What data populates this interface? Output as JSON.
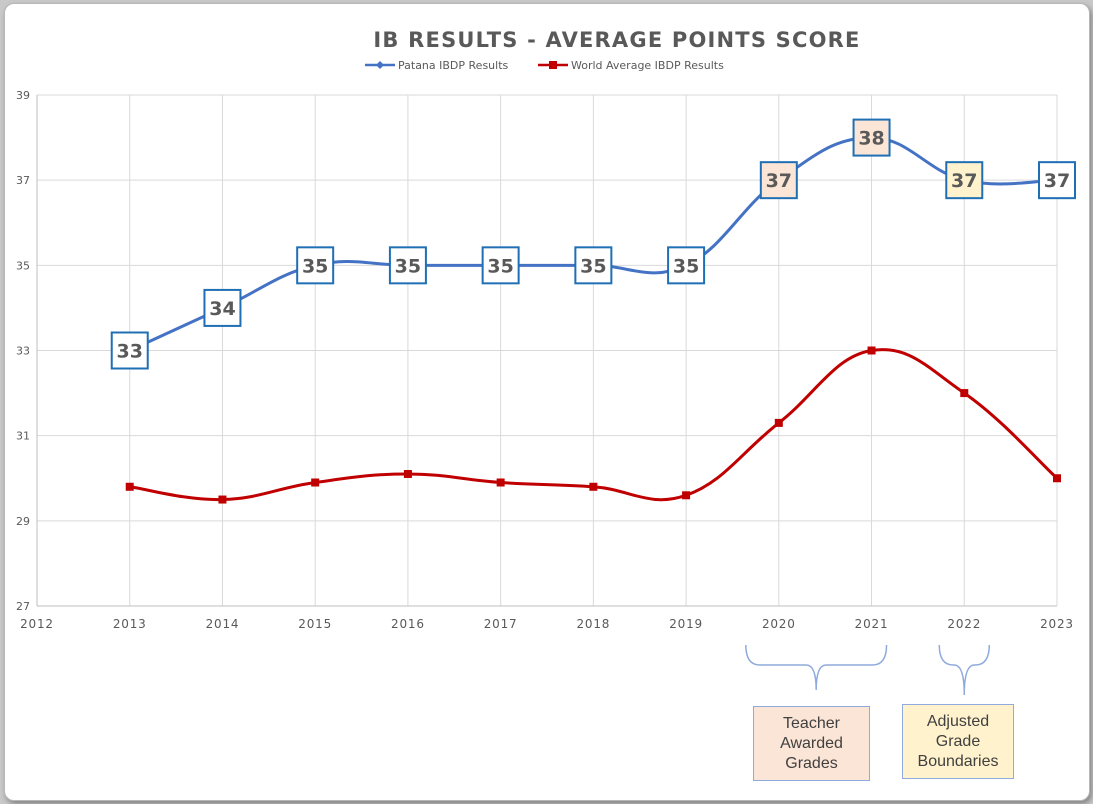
{
  "chart_data": {
    "type": "line",
    "title": "IB RESULTS - AVERAGE POINTS SCORE",
    "xlabel": "",
    "ylabel": "",
    "x_ticks": [
      "2012",
      "2013",
      "2014",
      "2015",
      "2016",
      "2017",
      "2018",
      "2019",
      "2020",
      "2021",
      "2022",
      "2023"
    ],
    "y_ticks": [
      "27",
      "29",
      "31",
      "33",
      "35",
      "37",
      "39"
    ],
    "xlim": [
      2012,
      2023
    ],
    "ylim": [
      27,
      39
    ],
    "grid": true,
    "legend_position": "top",
    "series": [
      {
        "name": "Patana IBDP Results",
        "color": "#4472c4",
        "marker": "diamond",
        "x": [
          2013,
          2014,
          2015,
          2016,
          2017,
          2018,
          2019,
          2020,
          2021,
          2022,
          2023
        ],
        "values": [
          33,
          34,
          35,
          35,
          35,
          35,
          35,
          37,
          38,
          37,
          37
        ],
        "labels": [
          "33",
          "34",
          "35",
          "35",
          "35",
          "35",
          "35",
          "37",
          "38",
          "37",
          "37"
        ],
        "label_fills": [
          "#ffffff",
          "#ffffff",
          "#ffffff",
          "#ffffff",
          "#ffffff",
          "#ffffff",
          "#ffffff",
          "#fbe5d6",
          "#fbe5d6",
          "#fff2cc",
          "#ffffff"
        ]
      },
      {
        "name": "World Average IBDP Results",
        "color": "#c00000",
        "marker": "square",
        "x": [
          2013,
          2014,
          2015,
          2016,
          2017,
          2018,
          2019,
          2020,
          2021,
          2022,
          2023
        ],
        "values": [
          29.8,
          29.5,
          29.9,
          30.1,
          29.9,
          29.8,
          29.6,
          31.3,
          33.0,
          32.0,
          30.0
        ]
      }
    ],
    "annotations": [
      {
        "text_lines": [
          "Teacher",
          "Awarded",
          "Grades"
        ],
        "years": [
          2020,
          2021
        ],
        "fill": "#fbe5d6"
      },
      {
        "text_lines": [
          "Adjusted",
          "Grade",
          "Boundaries"
        ],
        "years": [
          2022
        ],
        "fill": "#fff2cc"
      }
    ]
  }
}
